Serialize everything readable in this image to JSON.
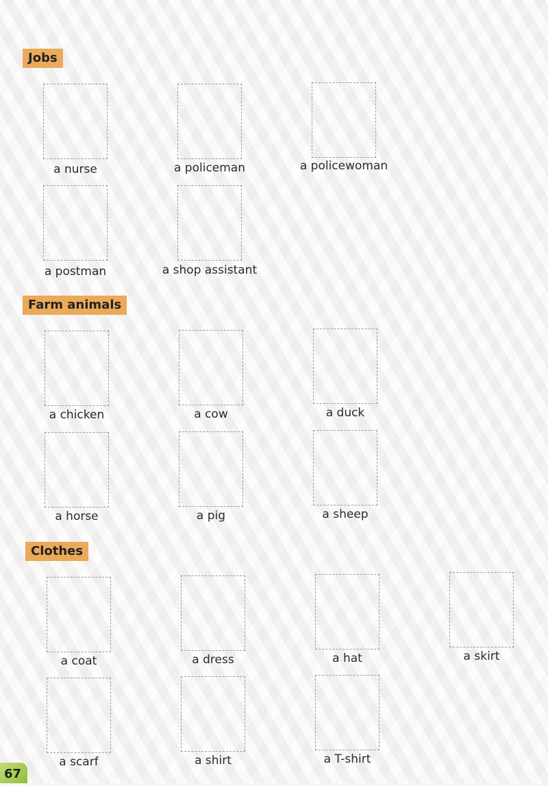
{
  "sections": [
    {
      "title": "Jobs",
      "items": [
        "a nurse",
        "a policeman",
        "a policewoman",
        "a postman",
        "a shop assistant"
      ]
    },
    {
      "title": "Farm animals",
      "items": [
        "a chicken",
        "a cow",
        "a duck",
        "a horse",
        "a pig",
        "a sheep"
      ]
    },
    {
      "title": "Clothes",
      "items": [
        "a coat",
        "a dress",
        "a hat",
        "a skirt",
        "a scarf",
        "a shirt",
        "a T-shirt"
      ]
    }
  ],
  "page_number": "67",
  "colors": {
    "heading_bg": "#eba95a",
    "page_tab": "#8fbf3e",
    "box_border": "#9a9a9a"
  }
}
